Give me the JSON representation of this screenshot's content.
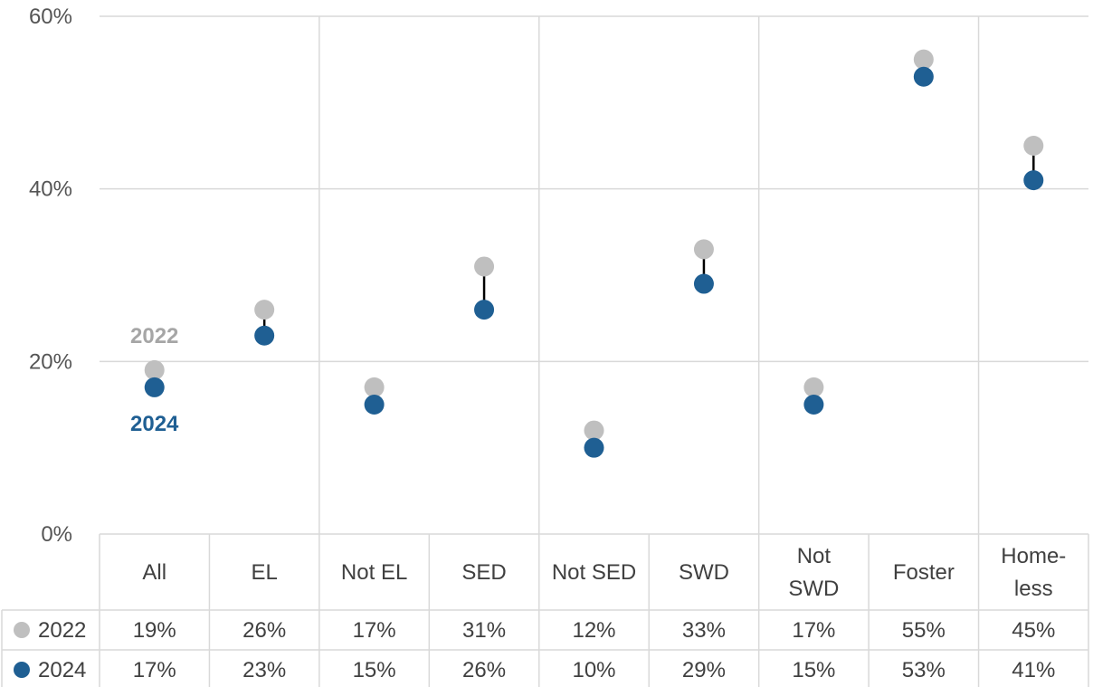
{
  "chart_data": {
    "type": "dot",
    "categories": [
      [
        "All"
      ],
      [
        "EL"
      ],
      [
        "Not EL"
      ],
      [
        "SED"
      ],
      [
        "Not SED"
      ],
      [
        "SWD"
      ],
      [
        "Not",
        "SWD"
      ],
      [
        "Foster"
      ],
      [
        "Home-",
        "less"
      ]
    ],
    "series": [
      {
        "name": "2022",
        "color": "#bfbfbf",
        "values": [
          19,
          26,
          17,
          31,
          12,
          33,
          17,
          55,
          45
        ],
        "labels": [
          "19%",
          "26%",
          "17%",
          "31%",
          "12%",
          "33%",
          "17%",
          "55%",
          "45%"
        ]
      },
      {
        "name": "2024",
        "color": "#1f5f93",
        "values": [
          17,
          23,
          15,
          26,
          10,
          29,
          15,
          53,
          41
        ],
        "labels": [
          "17%",
          "23%",
          "15%",
          "26%",
          "10%",
          "29%",
          "15%",
          "53%",
          "41%"
        ]
      }
    ],
    "ylim": [
      0,
      60
    ],
    "y_ticks": [
      "0%",
      "20%",
      "40%",
      "60%"
    ],
    "annotations": [
      {
        "text": "2022",
        "color": "#a6a6a6"
      },
      {
        "text": "2024",
        "color": "#1f5f93"
      }
    ],
    "grid": true,
    "legend": "data table below chart"
  }
}
